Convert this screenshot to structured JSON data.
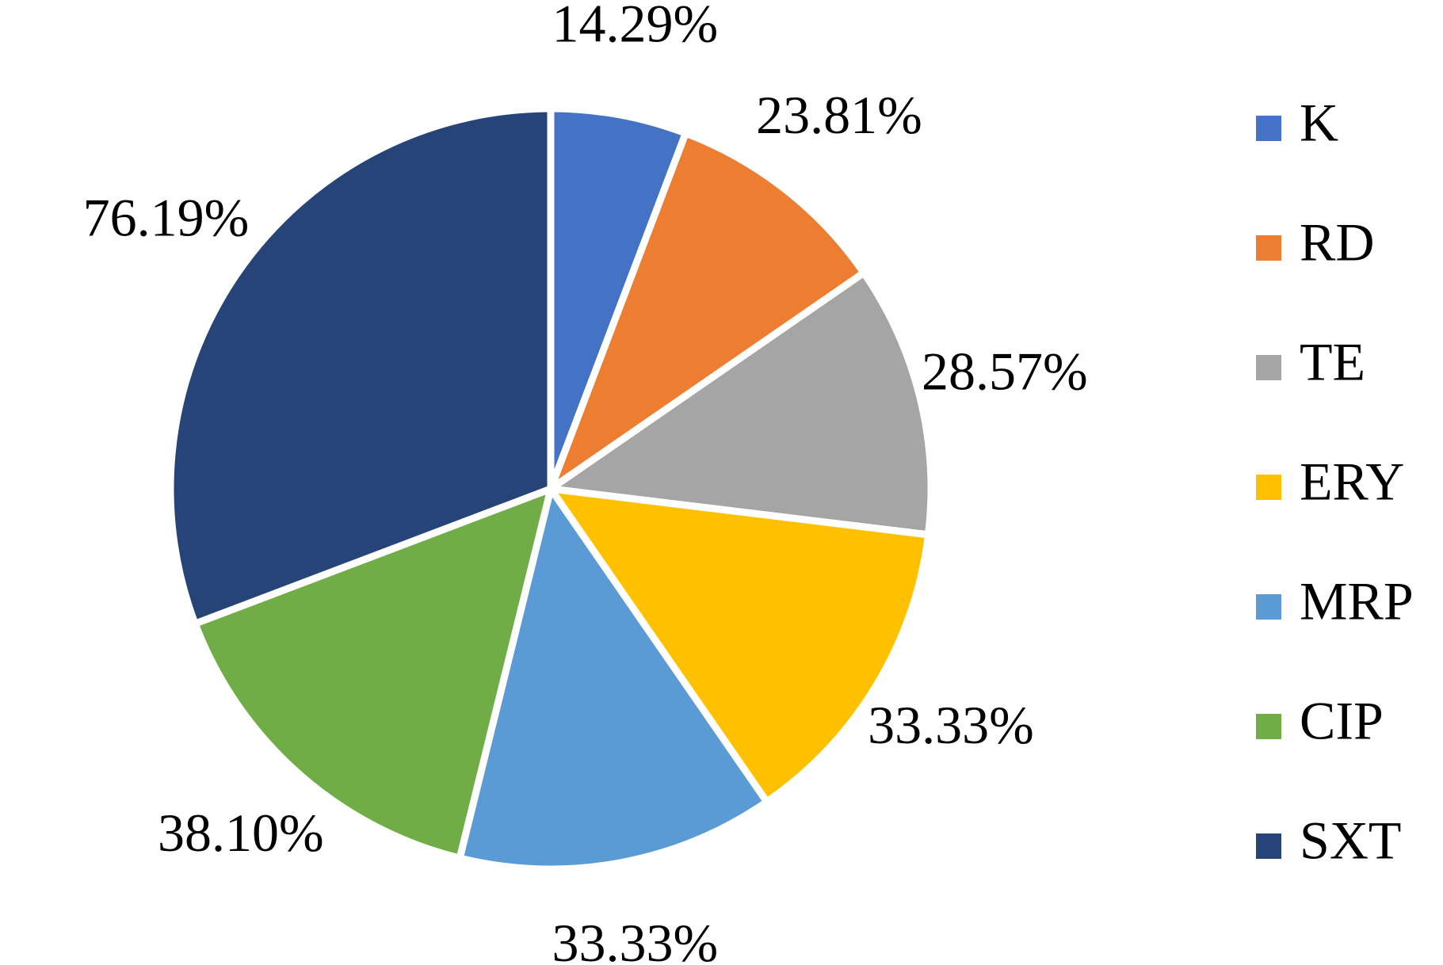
{
  "chart_data": {
    "type": "pie",
    "title": "",
    "legend_position": "right",
    "categories": [
      "K",
      "RD",
      "TE",
      "ERY",
      "MRP",
      "CIP",
      "SXT"
    ],
    "values": [
      14.29,
      23.81,
      28.57,
      33.33,
      33.33,
      38.1,
      76.19
    ],
    "labels": [
      "14.29%",
      "23.81%",
      "28.57%",
      "33.33%",
      "33.33%",
      "38.10%",
      "76.19%"
    ],
    "colors": [
      "#4472C4",
      "#ED7D31",
      "#A5A5A5",
      "#FFC000",
      "#5B9BD5",
      "#70AD47",
      "#264478"
    ]
  }
}
